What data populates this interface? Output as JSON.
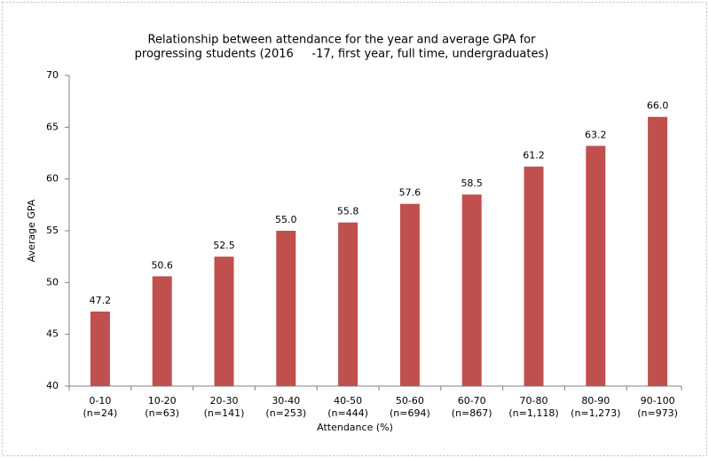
{
  "chart_data": {
    "type": "bar",
    "title": [
      "Relationship between attendance for the year and average GPA for",
      "progressing students (2016     -17, first year, full time, undergraduates)"
    ],
    "x_label": "Attendance (%)",
    "y_label": "Average GPA",
    "categories": [
      [
        "0-10",
        "(n=24)"
      ],
      [
        "10-20",
        "(n=63)"
      ],
      [
        "20-30",
        "(n=141)"
      ],
      [
        "30-40",
        "(n=253)"
      ],
      [
        "40-50",
        "(n=444)"
      ],
      [
        "50-60",
        "(n=694)"
      ],
      [
        "60-70",
        "(n=867)"
      ],
      [
        "70-80",
        "(n=1,118)"
      ],
      [
        "80-90",
        "(n=1,273)"
      ],
      [
        "90-100",
        "(n=973)"
      ]
    ],
    "values": [
      47.2,
      50.6,
      52.5,
      55.0,
      55.8,
      57.6,
      58.5,
      61.2,
      63.2,
      66.0
    ],
    "value_labels": [
      "47.2",
      "50.6",
      "52.5",
      "55.0",
      "55.8",
      "57.6",
      "58.5",
      "61.2",
      "63.2",
      "66.0"
    ],
    "color": "#c0504d",
    "ylim": [
      40,
      70
    ],
    "yticks": [
      40,
      45,
      50,
      55,
      60,
      65,
      70
    ],
    "grid": false
  }
}
